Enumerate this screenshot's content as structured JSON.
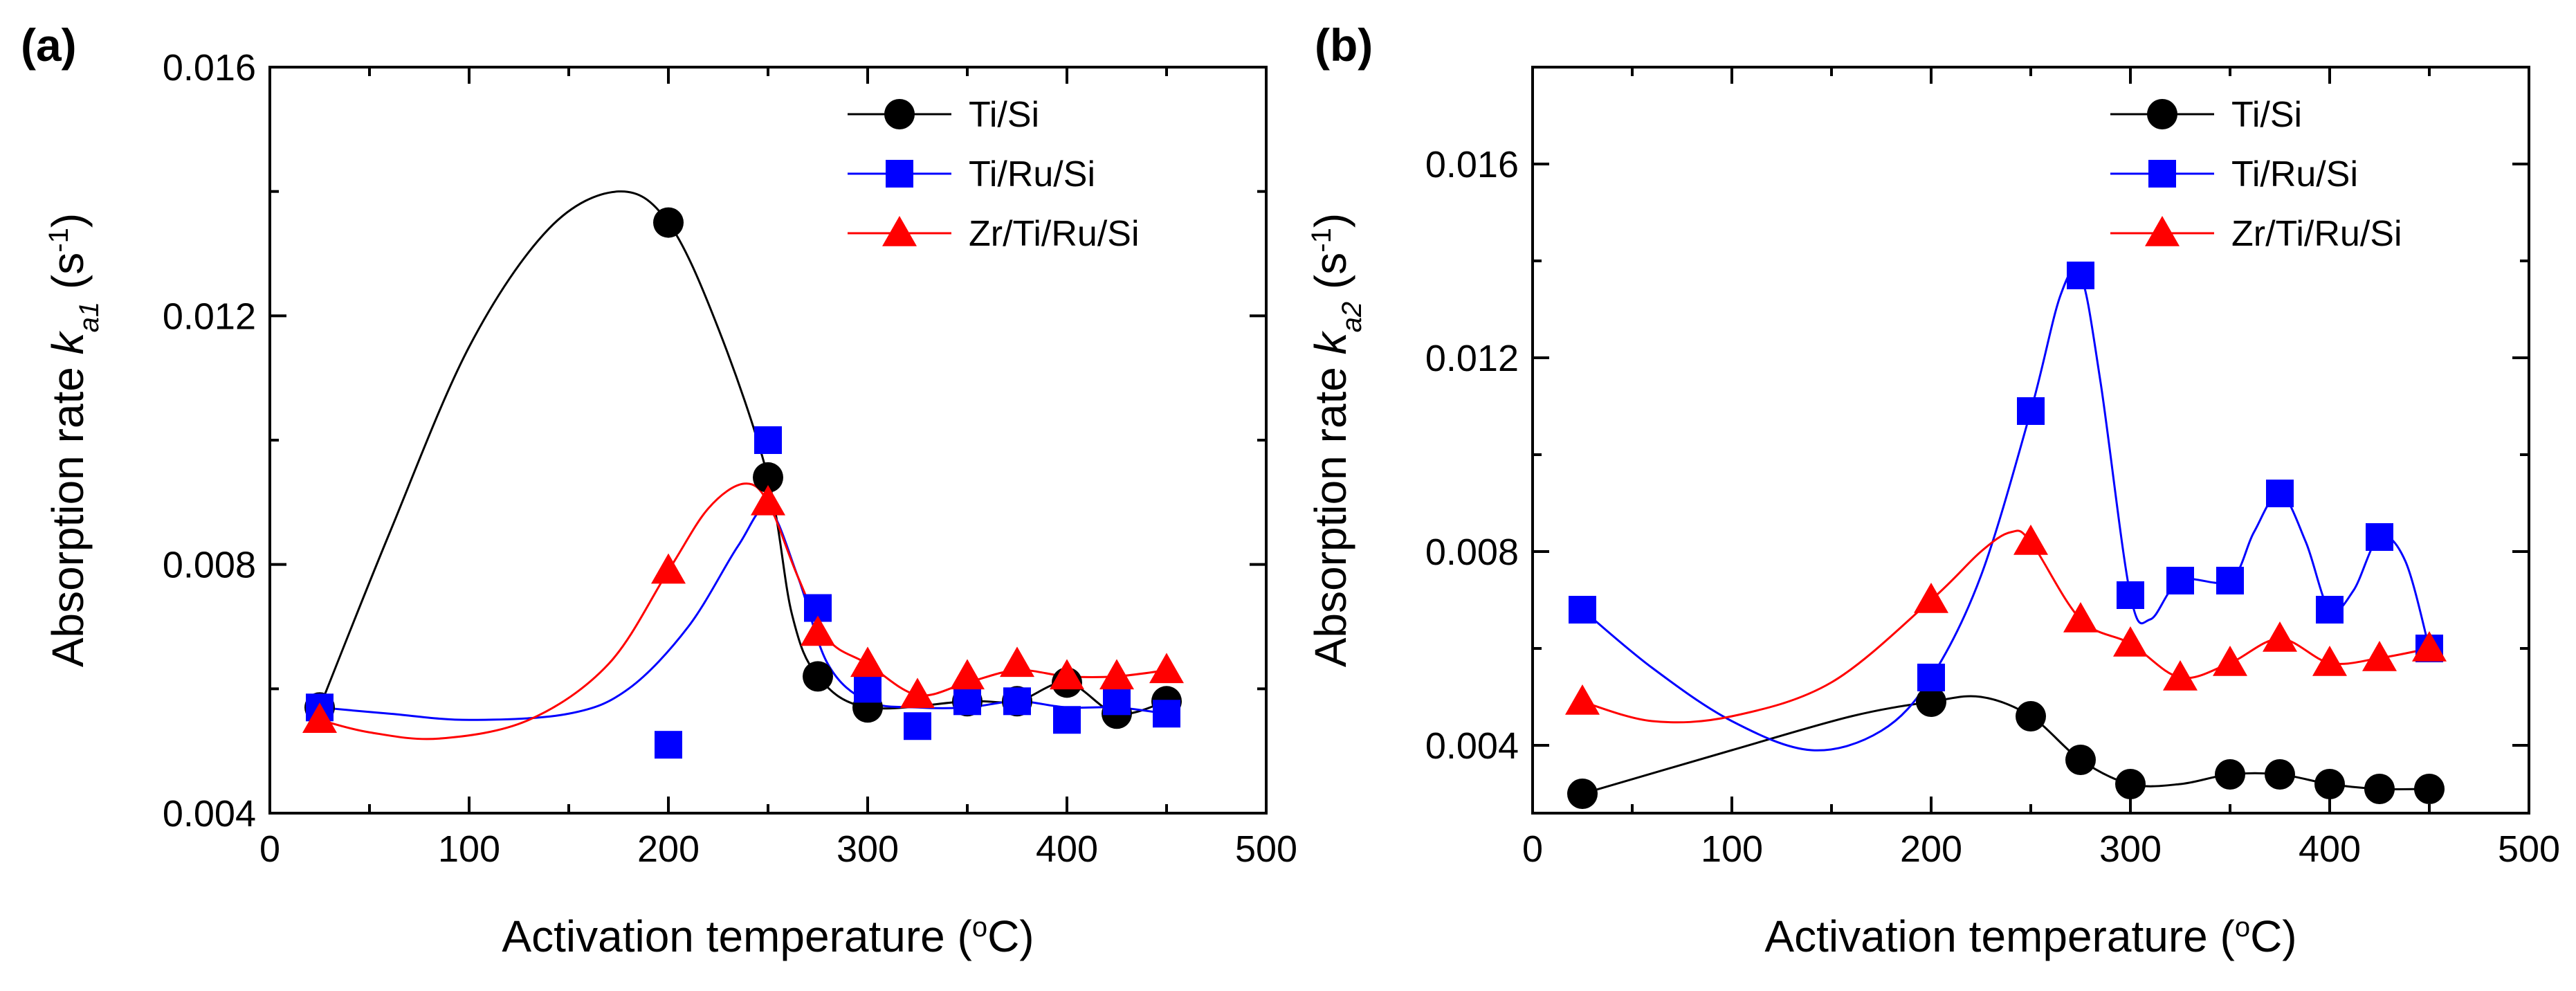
{
  "chart_data": [
    {
      "panel_label": "(a)",
      "type": "scatter",
      "xlabel": "Activation temperature (°C)",
      "xlabel_parts": {
        "before": "Activation temperature (",
        "sup": "o",
        "after": "C)"
      },
      "ylabel_parts": {
        "before": "Absorption rate ",
        "italic": "k",
        "sub": "a1",
        "mid": " (s",
        "sup": "-1",
        "after": ")"
      },
      "xlim": [
        0,
        500
      ],
      "ylim": [
        0.004,
        0.016
      ],
      "xticks": [
        "0",
        "100",
        "200",
        "300",
        "400",
        "500"
      ],
      "yticks": [
        "0.004",
        "0.008",
        "0.012",
        "0.016"
      ],
      "xtick_values": [
        0,
        100,
        200,
        300,
        400,
        500
      ],
      "ytick_values": [
        0.004,
        0.008,
        0.012,
        0.016
      ],
      "legend_position": "top-right",
      "series": [
        {
          "name": "Ti/Si",
          "color": "#000000",
          "marker": "circle",
          "x": [
            25,
            200,
            250,
            275,
            300,
            350,
            375,
            400,
            425,
            450
          ],
          "y": [
            0.0057,
            0.0135,
            0.0094,
            0.0062,
            0.0057,
            0.0058,
            0.0058,
            0.0061,
            0.0056,
            0.0058
          ],
          "curve": [
            [
              25,
              0.0057
            ],
            [
              60,
              0.0085
            ],
            [
              100,
              0.0115
            ],
            [
              140,
              0.0134
            ],
            [
              175,
              0.014
            ],
            [
              200,
              0.0135
            ],
            [
              225,
              0.0118
            ],
            [
              250,
              0.0094
            ],
            [
              262,
              0.0072
            ],
            [
              275,
              0.0062
            ],
            [
              300,
              0.0057
            ],
            [
              350,
              0.0058
            ],
            [
              375,
              0.0058
            ],
            [
              400,
              0.0061
            ],
            [
              425,
              0.0056
            ],
            [
              450,
              0.0058
            ]
          ]
        },
        {
          "name": "Ti/Ru/Si",
          "color": "#0000ff",
          "marker": "square",
          "x": [
            25,
            200,
            250,
            275,
            300,
            325,
            350,
            375,
            400,
            425,
            450
          ],
          "y": [
            0.0057,
            0.0051,
            0.01,
            0.0073,
            0.006,
            0.0054,
            0.0058,
            0.0058,
            0.0055,
            0.0058,
            0.0056
          ],
          "curve": [
            [
              25,
              0.0057
            ],
            [
              60,
              0.0056
            ],
            [
              100,
              0.0055
            ],
            [
              150,
              0.0056
            ],
            [
              180,
              0.006
            ],
            [
              210,
              0.007
            ],
            [
              235,
              0.0083
            ],
            [
              250,
              0.0089
            ],
            [
              265,
              0.0078
            ],
            [
              280,
              0.0064
            ],
            [
              300,
              0.0058
            ],
            [
              325,
              0.0057
            ],
            [
              350,
              0.0057
            ],
            [
              375,
              0.0058
            ],
            [
              400,
              0.0057
            ],
            [
              425,
              0.0057
            ],
            [
              450,
              0.0056
            ]
          ]
        },
        {
          "name": "Zr/Ti/Ru/Si",
          "color": "#ff0000",
          "marker": "triangle",
          "x": [
            25,
            200,
            250,
            275,
            300,
            325,
            350,
            375,
            400,
            425,
            450
          ],
          "y": [
            0.0055,
            0.0079,
            0.009,
            0.0069,
            0.0064,
            0.0059,
            0.0062,
            0.0064,
            0.0062,
            0.0062,
            0.0063
          ],
          "curve": [
            [
              25,
              0.0055
            ],
            [
              50,
              0.0053
            ],
            [
              85,
              0.0052
            ],
            [
              130,
              0.0055
            ],
            [
              170,
              0.0064
            ],
            [
              200,
              0.0079
            ],
            [
              220,
              0.0089
            ],
            [
              238,
              0.0093
            ],
            [
              250,
              0.009
            ],
            [
              265,
              0.0078
            ],
            [
              280,
              0.0068
            ],
            [
              300,
              0.0064
            ],
            [
              325,
              0.0059
            ],
            [
              350,
              0.0061
            ],
            [
              375,
              0.0063
            ],
            [
              400,
              0.0062
            ],
            [
              425,
              0.0062
            ],
            [
              450,
              0.0063
            ]
          ]
        }
      ]
    },
    {
      "panel_label": "(b)",
      "type": "scatter",
      "xlabel": "Activation temperature (°C)",
      "xlabel_parts": {
        "before": "Activation temperature (",
        "sup": "o",
        "after": "C)"
      },
      "ylabel_parts": {
        "before": "Absorption rate ",
        "italic": "k",
        "sub": "a2",
        "mid": " (s",
        "sup": "-1",
        "after": ")"
      },
      "xlim": [
        0,
        500
      ],
      "ylim": [
        0.0026,
        0.018
      ],
      "xticks": [
        "0",
        "100",
        "200",
        "300",
        "400",
        "500"
      ],
      "yticks": [
        "0.004",
        "0.008",
        "0.012",
        "0.016"
      ],
      "xtick_values": [
        0,
        100,
        200,
        300,
        400,
        500
      ],
      "ytick_values": [
        0.004,
        0.008,
        0.012,
        0.016
      ],
      "legend_position": "top-right",
      "series": [
        {
          "name": "Ti/Si",
          "color": "#000000",
          "marker": "circle",
          "x": [
            25,
            200,
            250,
            275,
            300,
            350,
            375,
            400,
            425,
            450
          ],
          "y": [
            0.003,
            0.0049,
            0.0046,
            0.0037,
            0.0032,
            0.0034,
            0.0034,
            0.0032,
            0.0031,
            0.0031
          ],
          "curve": [
            [
              25,
              0.003
            ],
            [
              100,
              0.0039
            ],
            [
              160,
              0.0046
            ],
            [
              200,
              0.0049
            ],
            [
              225,
              0.005
            ],
            [
              250,
              0.0046
            ],
            [
              275,
              0.0037
            ],
            [
              300,
              0.0032
            ],
            [
              325,
              0.0032
            ],
            [
              350,
              0.0034
            ],
            [
              375,
              0.0034
            ],
            [
              400,
              0.0032
            ],
            [
              425,
              0.0031
            ],
            [
              450,
              0.0031
            ]
          ]
        },
        {
          "name": "Ti/Ru/Si",
          "color": "#0000ff",
          "marker": "square",
          "x": [
            25,
            200,
            250,
            275,
            300,
            325,
            350,
            375,
            400,
            425,
            450
          ],
          "y": [
            0.0068,
            0.0054,
            0.0109,
            0.0137,
            0.0071,
            0.0074,
            0.0074,
            0.0092,
            0.0068,
            0.0083,
            0.006
          ],
          "curve": [
            [
              25,
              0.0068
            ],
            [
              60,
              0.0056
            ],
            [
              100,
              0.0045
            ],
            [
              140,
              0.0039
            ],
            [
              175,
              0.0043
            ],
            [
              200,
              0.0054
            ],
            [
              225,
              0.0075
            ],
            [
              250,
              0.0109
            ],
            [
              265,
              0.0133
            ],
            [
              275,
              0.0137
            ],
            [
              285,
              0.0115
            ],
            [
              300,
              0.0071
            ],
            [
              310,
              0.0066
            ],
            [
              325,
              0.0074
            ],
            [
              350,
              0.0074
            ],
            [
              362,
              0.0084
            ],
            [
              375,
              0.0092
            ],
            [
              388,
              0.0082
            ],
            [
              400,
              0.0068
            ],
            [
              412,
              0.0072
            ],
            [
              425,
              0.0083
            ],
            [
              438,
              0.0078
            ],
            [
              450,
              0.006
            ]
          ]
        },
        {
          "name": "Zr/Ti/Ru/Si",
          "color": "#ff0000",
          "marker": "triangle",
          "x": [
            25,
            200,
            250,
            275,
            300,
            325,
            350,
            375,
            400,
            425,
            450
          ],
          "y": [
            0.0049,
            0.007,
            0.0082,
            0.0066,
            0.0061,
            0.0054,
            0.0057,
            0.0062,
            0.0057,
            0.0058,
            0.006
          ],
          "curve": [
            [
              25,
              0.0049
            ],
            [
              60,
              0.0045
            ],
            [
              100,
              0.0046
            ],
            [
              150,
              0.0053
            ],
            [
              200,
              0.007
            ],
            [
              225,
              0.008
            ],
            [
              240,
              0.0084
            ],
            [
              250,
              0.0082
            ],
            [
              275,
              0.0066
            ],
            [
              300,
              0.0061
            ],
            [
              325,
              0.0054
            ],
            [
              350,
              0.0057
            ],
            [
              375,
              0.0062
            ],
            [
              400,
              0.0057
            ],
            [
              425,
              0.0058
            ],
            [
              450,
              0.006
            ]
          ]
        }
      ]
    }
  ]
}
